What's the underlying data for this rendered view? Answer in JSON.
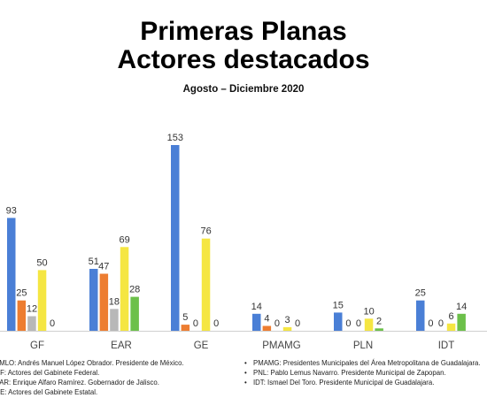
{
  "chart_data": {
    "type": "bar",
    "title_line1": "Primeras Planas",
    "title_line2": "Actores destacados",
    "subtitle": "Agosto – Diciembre 2020",
    "categories": [
      "GF",
      "EAR",
      "GE",
      "PMAMG",
      "PLN",
      "IDT"
    ],
    "series": [
      {
        "color": "#4a7fd6",
        "values": [
          93,
          51,
          153,
          14,
          15,
          25
        ]
      },
      {
        "color": "#ed7d31",
        "values": [
          25,
          47,
          5,
          4,
          0,
          0
        ]
      },
      {
        "color": "#b8b8b8",
        "values": [
          12,
          18,
          0,
          0,
          0,
          0
        ]
      },
      {
        "color": "#f5e642",
        "values": [
          50,
          69,
          76,
          3,
          10,
          6
        ]
      },
      {
        "color": "#6cc04a",
        "values": [
          0,
          28,
          0,
          0,
          2,
          14
        ]
      }
    ],
    "ylim": [
      0,
      160
    ],
    "grid": false
  },
  "legend": {
    "left": [
      "AMLO: Andrés Manuel López Obrador. Presidente de México.",
      "GF: Actores del Gabinete Federal.",
      "EAR: Enrique Alfaro Ramírez. Gobernador de Jalisco.",
      "GE: Actores del Gabinete Estatal."
    ],
    "right": [
      "PMAMG: Presidentes Municipales del Área Metropolitana de Guadalajara.",
      "PNL: Pablo Lemus Navarro. Presidente Municipal de Zapopan.",
      "IDT: Ismael Del Toro. Presidente Municipal de Guadalajara."
    ]
  }
}
